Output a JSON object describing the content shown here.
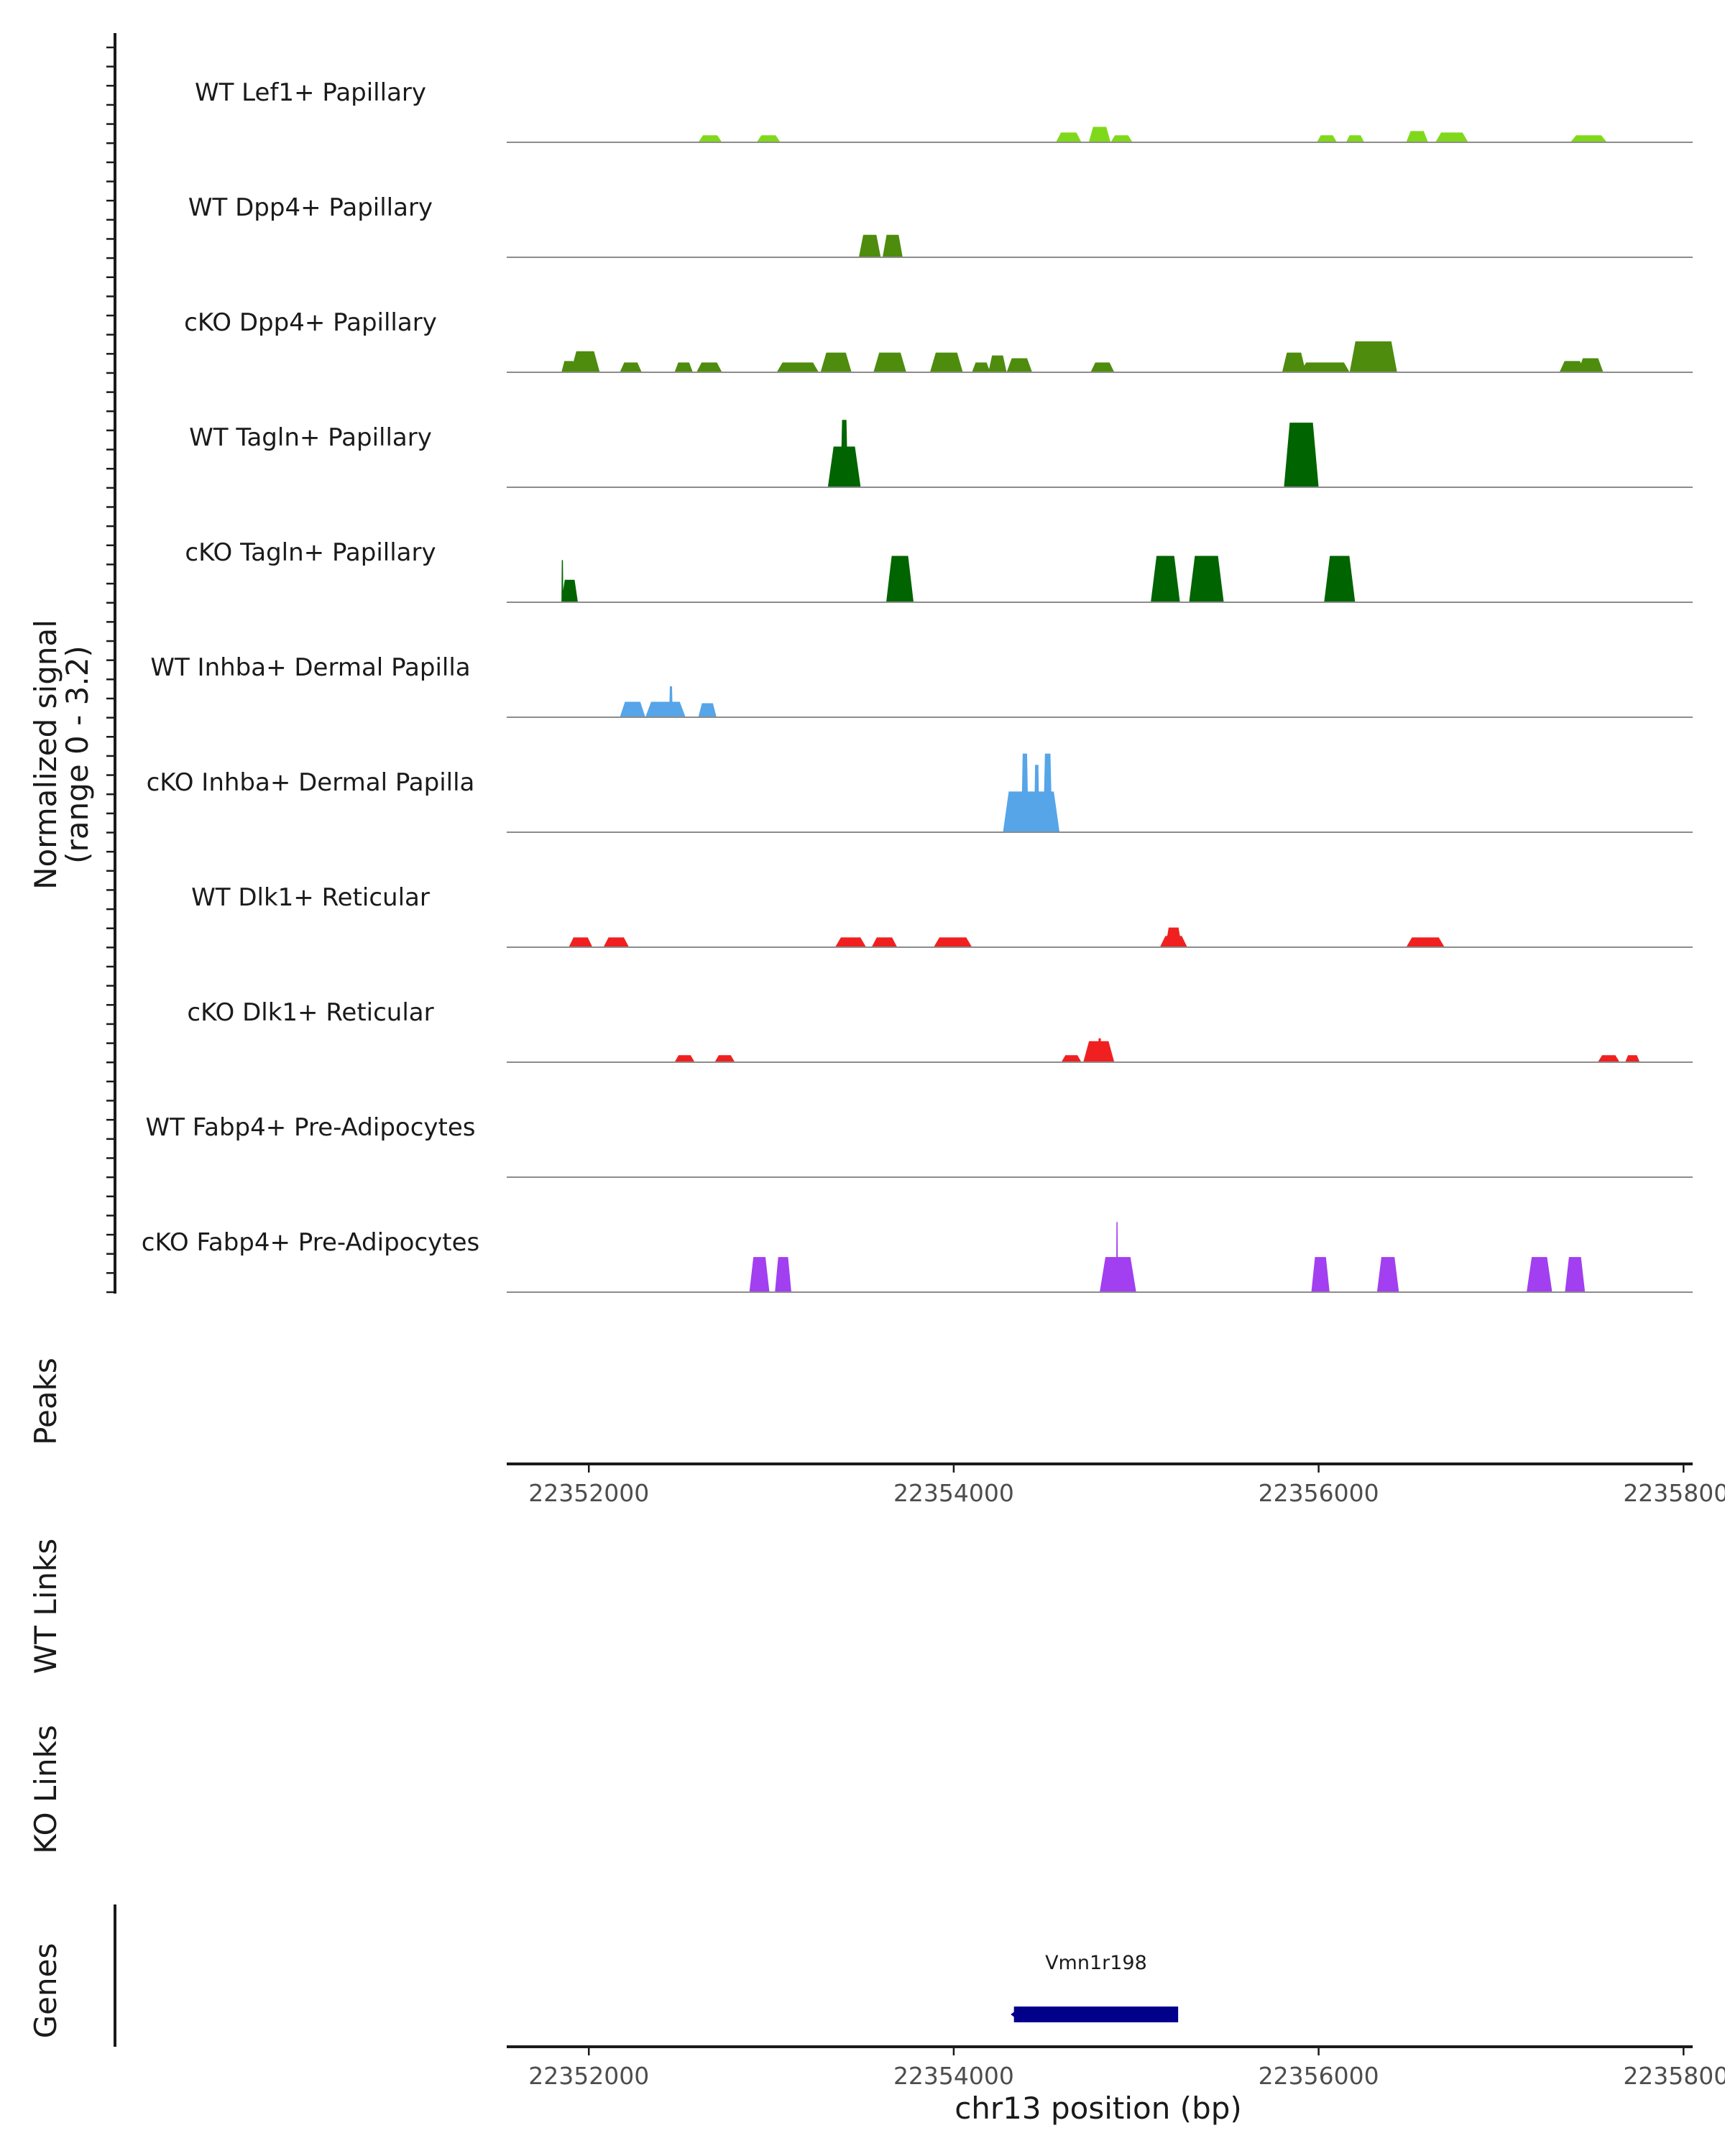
{
  "chart_data": {
    "type": "area",
    "title": "",
    "region": "chr13",
    "xlim": [
      22351550,
      22358050
    ],
    "xlabel": "chr13 position (bp)",
    "xticks": [
      22352000,
      22354000,
      22356000,
      22358000
    ],
    "xtick_labels": [
      "22352000",
      "22354000",
      "22356000",
      "22358000"
    ],
    "ylabel_line1": "Normalized signal",
    "ylabel_line2": "(range 0 - 3.2)",
    "ylim": [
      0,
      3.2
    ],
    "y_tick_count": 66,
    "series": [
      {
        "name": "WT Lef1+ Papillary",
        "color": "#7fd91a",
        "peaks": [
          {
            "start": 22352600,
            "end": 22352730,
            "h": 0.25
          },
          {
            "start": 22352920,
            "end": 22353050,
            "h": 0.25
          },
          {
            "start": 22354560,
            "end": 22354700,
            "h": 0.35
          },
          {
            "start": 22354740,
            "end": 22354860,
            "h": 0.55
          },
          {
            "start": 22354860,
            "end": 22354980,
            "h": 0.25
          },
          {
            "start": 22355990,
            "end": 22356100,
            "h": 0.25
          },
          {
            "start": 22356150,
            "end": 22356250,
            "h": 0.25
          },
          {
            "start": 22356480,
            "end": 22356600,
            "h": 0.4
          },
          {
            "start": 22356640,
            "end": 22356820,
            "h": 0.35
          },
          {
            "start": 22357380,
            "end": 22357580,
            "h": 0.25
          }
        ]
      },
      {
        "name": "WT Dpp4+ Papillary",
        "color": "#4d8c0d",
        "peaks": [
          {
            "start": 22353480,
            "end": 22353600,
            "h": 0.8
          },
          {
            "start": 22353610,
            "end": 22353720,
            "h": 0.8
          }
        ]
      },
      {
        "name": "cKO Dpp4+ Papillary",
        "color": "#4d8c0d",
        "peaks": [
          {
            "start": 22351850,
            "end": 22351930,
            "h": 0.4
          },
          {
            "start": 22351900,
            "end": 22352060,
            "h": 0.75
          },
          {
            "start": 22352170,
            "end": 22352290,
            "h": 0.35
          },
          {
            "start": 22352470,
            "end": 22352570,
            "h": 0.35
          },
          {
            "start": 22352590,
            "end": 22352730,
            "h": 0.35
          },
          {
            "start": 22353030,
            "end": 22353260,
            "h": 0.35
          },
          {
            "start": 22353270,
            "end": 22353440,
            "h": 0.7
          },
          {
            "start": 22353560,
            "end": 22353740,
            "h": 0.7
          },
          {
            "start": 22353870,
            "end": 22354050,
            "h": 0.7
          },
          {
            "start": 22354100,
            "end": 22354200,
            "h": 0.35
          },
          {
            "start": 22354190,
            "end": 22354290,
            "h": 0.6
          },
          {
            "start": 22354290,
            "end": 22354430,
            "h": 0.5
          },
          {
            "start": 22354750,
            "end": 22354880,
            "h": 0.35
          },
          {
            "start": 22355800,
            "end": 22355930,
            "h": 0.7
          },
          {
            "start": 22355900,
            "end": 22356170,
            "h": 0.35
          },
          {
            "start": 22356170,
            "end": 22356430,
            "h": 1.1
          },
          {
            "start": 22357320,
            "end": 22357460,
            "h": 0.4
          },
          {
            "start": 22357420,
            "end": 22357560,
            "h": 0.5
          }
        ]
      },
      {
        "name": "WT Tagln+ Papillary",
        "color": "#006400",
        "peaks": [
          {
            "start": 22353310,
            "end": 22353490,
            "h": 1.45
          },
          {
            "start": 22353380,
            "end": 22353420,
            "h": 2.4
          },
          {
            "start": 22355810,
            "end": 22356000,
            "h": 2.3
          }
        ]
      },
      {
        "name": "cKO Tagln+ Papillary",
        "color": "#006400",
        "peaks": [
          {
            "start": 22351850,
            "end": 22351940,
            "h": 0.8
          },
          {
            "start": 22351850,
            "end": 22351860,
            "h": 1.5
          },
          {
            "start": 22353630,
            "end": 22353780,
            "h": 1.65
          },
          {
            "start": 22355080,
            "end": 22355240,
            "h": 1.65
          },
          {
            "start": 22355290,
            "end": 22355480,
            "h": 1.65
          },
          {
            "start": 22356030,
            "end": 22356200,
            "h": 1.65
          }
        ]
      },
      {
        "name": "WT Inhba+ Dermal Papilla",
        "color": "#56a5e8",
        "peaks": [
          {
            "start": 22352170,
            "end": 22352310,
            "h": 0.55
          },
          {
            "start": 22352310,
            "end": 22352530,
            "h": 0.55
          },
          {
            "start": 22352440,
            "end": 22352460,
            "h": 1.1
          },
          {
            "start": 22352600,
            "end": 22352700,
            "h": 0.5
          }
        ]
      },
      {
        "name": "cKO Inhba+ Dermal Papilla",
        "color": "#56a5e8",
        "peaks": [
          {
            "start": 22354270,
            "end": 22354580,
            "h": 1.45
          },
          {
            "start": 22354370,
            "end": 22354410,
            "h": 2.8
          },
          {
            "start": 22354440,
            "end": 22354470,
            "h": 2.4
          },
          {
            "start": 22354490,
            "end": 22354540,
            "h": 2.8
          }
        ]
      },
      {
        "name": "WT Dlk1+ Reticular",
        "color": "#f02020",
        "peaks": [
          {
            "start": 22351890,
            "end": 22352020,
            "h": 0.35
          },
          {
            "start": 22352080,
            "end": 22352220,
            "h": 0.35
          },
          {
            "start": 22353350,
            "end": 22353520,
            "h": 0.35
          },
          {
            "start": 22353550,
            "end": 22353690,
            "h": 0.35
          },
          {
            "start": 22353890,
            "end": 22354100,
            "h": 0.35
          },
          {
            "start": 22355130,
            "end": 22355280,
            "h": 0.4
          },
          {
            "start": 22355160,
            "end": 22355250,
            "h": 0.7
          },
          {
            "start": 22356480,
            "end": 22356690,
            "h": 0.35
          }
        ]
      },
      {
        "name": "cKO Dlk1+ Reticular",
        "color": "#f02020",
        "peaks": [
          {
            "start": 22352470,
            "end": 22352580,
            "h": 0.25
          },
          {
            "start": 22352690,
            "end": 22352800,
            "h": 0.25
          },
          {
            "start": 22354590,
            "end": 22354700,
            "h": 0.25
          },
          {
            "start": 22354710,
            "end": 22354880,
            "h": 0.75
          },
          {
            "start": 22354790,
            "end": 22354810,
            "h": 0.85
          },
          {
            "start": 22357530,
            "end": 22357650,
            "h": 0.25
          },
          {
            "start": 22357680,
            "end": 22357760,
            "h": 0.25
          }
        ]
      },
      {
        "name": "WT Fabp4+ Pre-Adipocytes",
        "color": "#a23ff0",
        "peaks": []
      },
      {
        "name": "cKO Fabp4+ Pre-Adipocytes",
        "color": "#a23ff0",
        "peaks": [
          {
            "start": 22352880,
            "end": 22352990,
            "h": 1.25
          },
          {
            "start": 22353020,
            "end": 22353110,
            "h": 1.25
          },
          {
            "start": 22354800,
            "end": 22355000,
            "h": 1.25
          },
          {
            "start": 22354890,
            "end": 22354900,
            "h": 2.5
          },
          {
            "start": 22355960,
            "end": 22356060,
            "h": 1.25
          },
          {
            "start": 22356320,
            "end": 22356440,
            "h": 1.25
          },
          {
            "start": 22357140,
            "end": 22357280,
            "h": 1.25
          },
          {
            "start": 22357350,
            "end": 22357460,
            "h": 1.25
          }
        ]
      }
    ],
    "peaks_track": {
      "label": "Peaks",
      "regions": []
    },
    "link_tracks": [
      {
        "label": "WT Links",
        "links": []
      },
      {
        "label": "KO Links",
        "links": []
      }
    ],
    "genes_track": {
      "label": "Genes",
      "genes": [
        {
          "name": "Vmn1r198",
          "start": 22354330,
          "end": 22355230,
          "strand": "-",
          "color": "#00008b"
        }
      ]
    }
  }
}
